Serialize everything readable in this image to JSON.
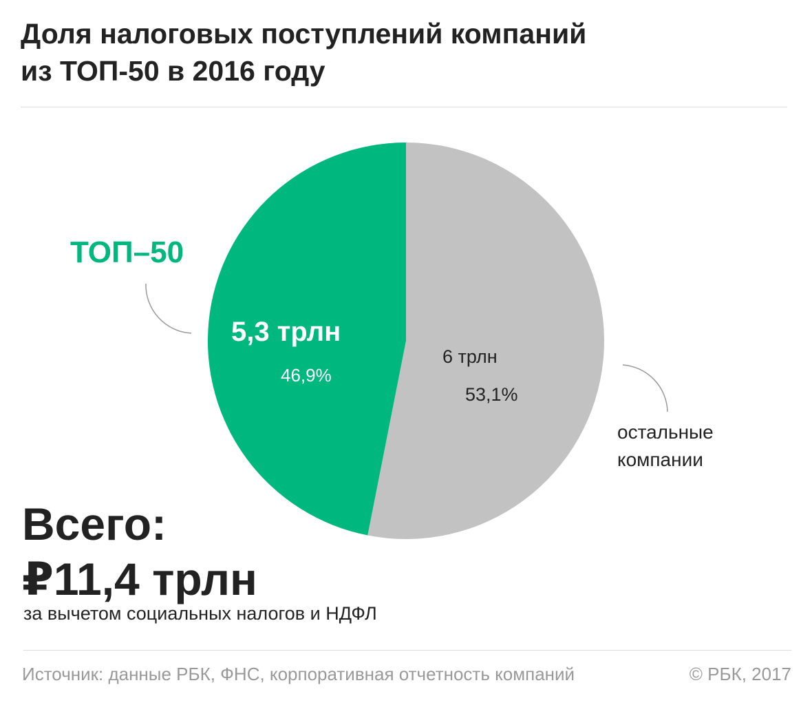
{
  "chart_data": {
    "type": "pie",
    "title": "Доля налоговых поступлений компаний\nиз ТОП-50 в 2016 году",
    "categories": [
      "ТОП–50",
      "остальные\nкомпании"
    ],
    "values": [
      46.9,
      53.1
    ],
    "value_labels": [
      "46,9%",
      "53,1%"
    ],
    "amount_labels": [
      "5,3 трлн",
      "6 трлн"
    ],
    "colors": [
      "#00b77e",
      "#c2c2c2"
    ],
    "total_label": "Всего:",
    "total_value": "₽11,4 трлн",
    "note": "за вычетом социальных налогов и НДФЛ",
    "source": "Источник: данные РБК, ФНС, корпоративная отчетность компаний",
    "copyright": "© РБК, 2017"
  }
}
